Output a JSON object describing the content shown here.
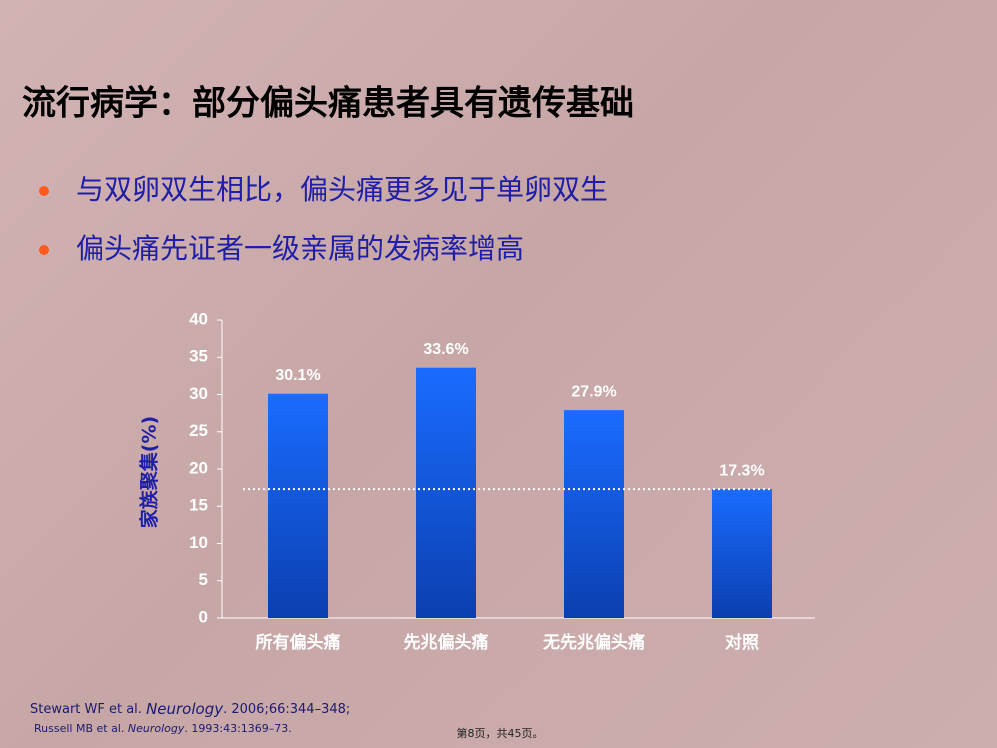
{
  "title": "流行病学：部分偏头痛患者具有遗传基础",
  "bullets": [
    "与双卵双生相比，偏头痛更多见于单卵双生",
    "偏头痛先证者一级亲属的发病率增高"
  ],
  "chart_data": {
    "type": "bar",
    "y_label": "家族聚集(%)",
    "categories": [
      "所有偏头痛",
      "先兆偏头痛",
      "无先兆偏头痛",
      "对照"
    ],
    "values": [
      30.1,
      33.6,
      27.9,
      17.3
    ],
    "value_labels": [
      "30.1%",
      "33.6%",
      "27.9%",
      "17.3%"
    ],
    "color": "#1466ff",
    "ylim": [
      0,
      40
    ],
    "yticks": [
      0,
      5,
      10,
      15,
      20,
      25,
      30,
      35,
      40
    ]
  },
  "references": [
    [
      "Stewart WF et al. ",
      "Neurology",
      ". 2006;66:344–348;"
    ],
    [
      "Russell MB et al. ",
      "Neurology",
      ". 1993:43:1369–73."
    ]
  ],
  "footer": "第8页，共45页。"
}
